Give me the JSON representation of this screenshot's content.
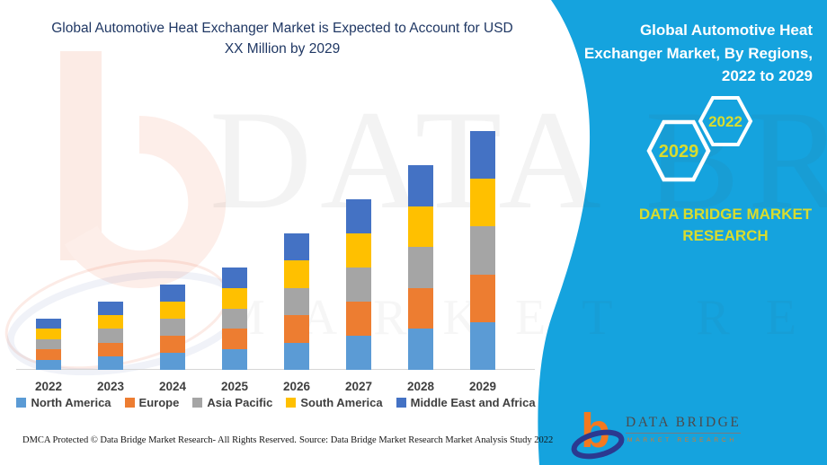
{
  "header": {
    "title_line1": "Global Automotive Heat Exchanger Market is Expected to Account for USD",
    "title_line2": "XX Million by 2029"
  },
  "side_panel": {
    "title_lines": [
      "Global Automotive Heat",
      "Exchanger Market, By Regions,",
      "2022 to 2029"
    ],
    "hexagon_back_year": "2029",
    "hexagon_front_year": "2022",
    "brand_line1": "DATA BRIDGE MARKET",
    "brand_line2": "RESEARCH",
    "panel_color": "#15a3de",
    "accent_yellow": "#d9dc2e"
  },
  "logo": {
    "name": "DATA BRIDGE",
    "subtitle": "MARKET RESEARCH"
  },
  "watermark": {
    "line1": "DATA BRIDGE",
    "line2": "MARKET RESEARCH"
  },
  "footer": {
    "left": "DMCA Protected © Data Bridge Market Research- All Rights Reserved.",
    "right": "Source: Data Bridge Market Research Market Analysis Study 2022"
  },
  "chart_data": {
    "type": "bar",
    "stacked": true,
    "title": "Global Automotive Heat Exchanger Market, By Regions, 2022 to 2029",
    "xlabel": "",
    "ylabel": "",
    "axis_visible": false,
    "legend_position": "bottom",
    "value_note": "relative units estimated from bar heights; no value axis shown (USD XX Million placeholder)",
    "categories": [
      "2022",
      "2023",
      "2024",
      "2025",
      "2026",
      "2027",
      "2028",
      "2029"
    ],
    "totals": [
      3.0,
      4.0,
      5.0,
      6.0,
      8.0,
      10.0,
      12.0,
      14.0
    ],
    "series": [
      {
        "name": "North America",
        "color": "#5B9BD5",
        "values": [
          0.6,
          0.8,
          1.0,
          1.2,
          1.6,
          2.0,
          2.4,
          2.8
        ]
      },
      {
        "name": "Europe",
        "color": "#ED7D31",
        "values": [
          0.6,
          0.8,
          1.0,
          1.2,
          1.6,
          2.0,
          2.4,
          2.8
        ]
      },
      {
        "name": "Asia Pacific",
        "color": "#A5A5A5",
        "values": [
          0.6,
          0.8,
          1.0,
          1.2,
          1.6,
          2.0,
          2.4,
          2.8
        ]
      },
      {
        "name": "South America",
        "color": "#FFC000",
        "values": [
          0.6,
          0.8,
          1.0,
          1.2,
          1.6,
          2.0,
          2.4,
          2.8
        ]
      },
      {
        "name": "Middle East and Africa",
        "color": "#4472C4",
        "values": [
          0.6,
          0.8,
          1.0,
          1.2,
          1.6,
          2.0,
          2.4,
          2.8
        ]
      }
    ]
  }
}
